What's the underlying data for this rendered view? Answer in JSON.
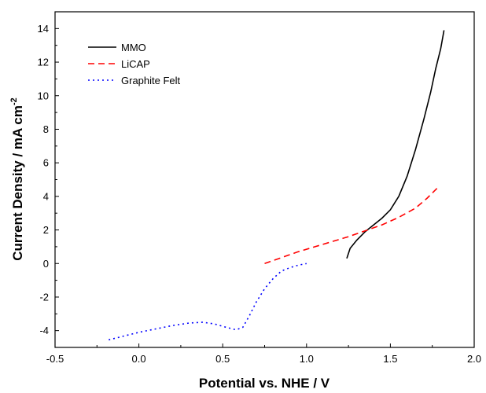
{
  "chart_data": {
    "type": "line",
    "title": "",
    "xlabel": "Potential vs. NHE / V",
    "ylabel_main": "Current Density / mA cm",
    "ylabel_sup": "-2",
    "xlim": [
      -0.5,
      2.0
    ],
    "ylim": [
      -5,
      15
    ],
    "xticks": [
      -0.5,
      0.0,
      0.5,
      1.0,
      1.5,
      2.0
    ],
    "xtick_labels": [
      "-0.5",
      "0.0",
      "0.5",
      "1.0",
      "1.5",
      "2.0"
    ],
    "yticks": [
      -4,
      -2,
      0,
      2,
      4,
      6,
      8,
      10,
      12,
      14
    ],
    "ytick_labels": [
      "-4",
      "-2",
      "0",
      "2",
      "4",
      "6",
      "8",
      "10",
      "12",
      "14"
    ],
    "grid": false,
    "legend_position": "top-left",
    "series": [
      {
        "name": "MMO",
        "color": "#000000",
        "dash": "solid",
        "x": [
          1.24,
          1.26,
          1.3,
          1.35,
          1.4,
          1.45,
          1.5,
          1.55,
          1.6,
          1.65,
          1.7,
          1.74,
          1.77,
          1.8,
          1.82
        ],
        "y": [
          0.3,
          0.9,
          1.4,
          1.9,
          2.3,
          2.7,
          3.2,
          4.0,
          5.2,
          6.8,
          8.6,
          10.2,
          11.6,
          12.8,
          13.9
        ]
      },
      {
        "name": "LiCAP",
        "color": "#ff0000",
        "dash": "dashed",
        "x": [
          0.75,
          0.85,
          0.95,
          1.05,
          1.15,
          1.25,
          1.35,
          1.45,
          1.55,
          1.65,
          1.72,
          1.78
        ],
        "y": [
          0.0,
          0.35,
          0.7,
          1.0,
          1.3,
          1.6,
          1.95,
          2.3,
          2.75,
          3.3,
          3.9,
          4.5
        ]
      },
      {
        "name": "Graphite Felt",
        "color": "#0000ff",
        "dash": "dotted",
        "x": [
          -0.18,
          -0.1,
          0.0,
          0.1,
          0.2,
          0.3,
          0.38,
          0.45,
          0.52,
          0.58,
          0.62,
          0.66,
          0.7,
          0.75,
          0.8,
          0.85,
          0.9,
          0.95,
          1.0
        ],
        "y": [
          -4.55,
          -4.35,
          -4.1,
          -3.9,
          -3.7,
          -3.55,
          -3.5,
          -3.6,
          -3.8,
          -3.95,
          -3.8,
          -3.1,
          -2.3,
          -1.5,
          -0.9,
          -0.45,
          -0.25,
          -0.1,
          0.0
        ]
      }
    ]
  }
}
